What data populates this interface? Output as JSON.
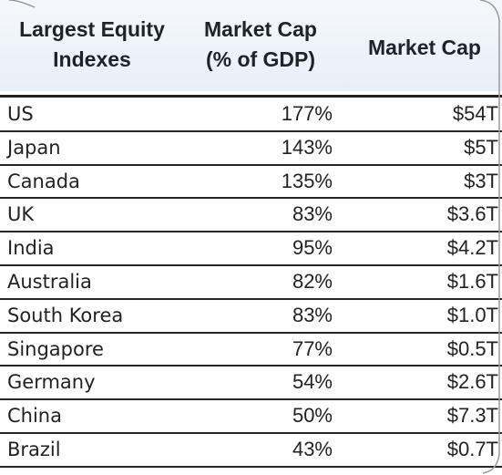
{
  "chart_data": {
    "type": "table",
    "columns": [
      "Largest Equity\nIndexes",
      "Market Cap\n(% of GDP)",
      "Market Cap"
    ],
    "rows": [
      {
        "country": "US",
        "pct_gdp": "177%",
        "market_cap": "$54T"
      },
      {
        "country": "Japan",
        "pct_gdp": "143%",
        "market_cap": "$5T"
      },
      {
        "country": "Canada",
        "pct_gdp": "135%",
        "market_cap": "$3T"
      },
      {
        "country": "UK",
        "pct_gdp": "83%",
        "market_cap": "$3.6T"
      },
      {
        "country": "India",
        "pct_gdp": "95%",
        "market_cap": "$4.2T"
      },
      {
        "country": "Australia",
        "pct_gdp": "82%",
        "market_cap": "$1.6T"
      },
      {
        "country": "South Korea",
        "pct_gdp": "83%",
        "market_cap": "$1.0T"
      },
      {
        "country": "Singapore",
        "pct_gdp": "77%",
        "market_cap": "$0.5T"
      },
      {
        "country": "Germany",
        "pct_gdp": "54%",
        "market_cap": "$2.6T"
      },
      {
        "country": "China",
        "pct_gdp": "50%",
        "market_cap": "$7.3T"
      },
      {
        "country": "Brazil",
        "pct_gdp": "43%",
        "market_cap": "$0.7T"
      }
    ]
  }
}
